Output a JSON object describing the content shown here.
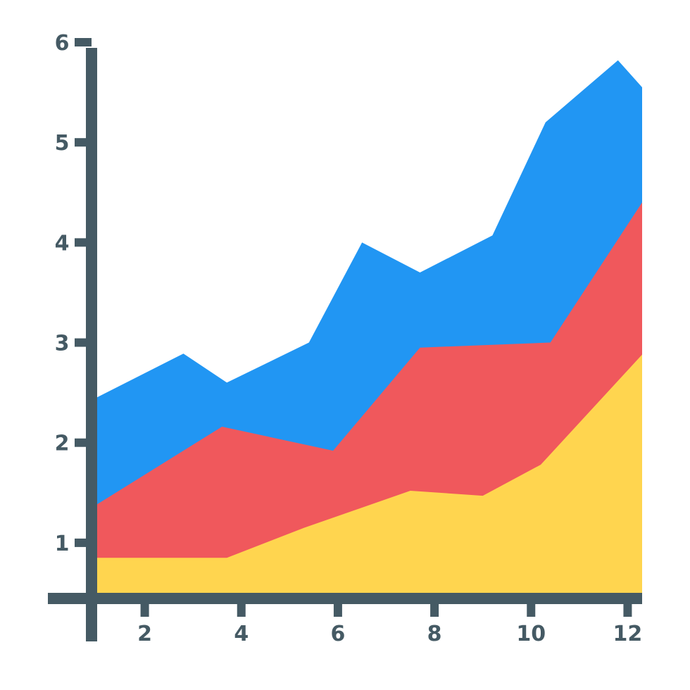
{
  "chart_data": {
    "type": "area",
    "stacked": true,
    "title": "",
    "xlabel": "",
    "ylabel": "",
    "xlim": [
      1,
      12.3
    ],
    "ylim": [
      0.5,
      6
    ],
    "x_ticks": [
      2,
      4,
      6,
      8,
      10,
      12
    ],
    "y_ticks": [
      1,
      2,
      3,
      4,
      5,
      6
    ],
    "x_tick_labels": [
      "2",
      "4",
      "6",
      "8",
      "10",
      "12"
    ],
    "y_tick_labels": [
      "1",
      "2",
      "3",
      "4",
      "5",
      "6"
    ],
    "grid": false,
    "legend": "none",
    "axis_color": "#455a64",
    "series": [
      {
        "color": "#ffd54f",
        "points": [
          [
            1.0,
            0.85
          ],
          [
            3.7,
            0.85
          ],
          [
            5.3,
            1.15
          ],
          [
            7.5,
            1.52
          ],
          [
            9.0,
            1.47
          ],
          [
            10.2,
            1.78
          ],
          [
            12.3,
            2.88
          ]
        ]
      },
      {
        "color": "#f0585c",
        "points": [
          [
            1.0,
            1.38
          ],
          [
            3.6,
            2.16
          ],
          [
            5.9,
            1.92
          ],
          [
            7.7,
            2.95
          ],
          [
            10.4,
            3.0
          ],
          [
            12.3,
            4.4
          ]
        ]
      },
      {
        "color": "#2196f3",
        "points": [
          [
            1.0,
            2.45
          ],
          [
            2.8,
            2.89
          ],
          [
            3.7,
            2.6
          ],
          [
            5.4,
            3.0
          ],
          [
            6.5,
            4.0
          ],
          [
            7.7,
            3.7
          ],
          [
            9.2,
            4.07
          ],
          [
            10.3,
            5.2
          ],
          [
            11.8,
            5.82
          ],
          [
            12.3,
            5.55
          ]
        ]
      }
    ]
  }
}
